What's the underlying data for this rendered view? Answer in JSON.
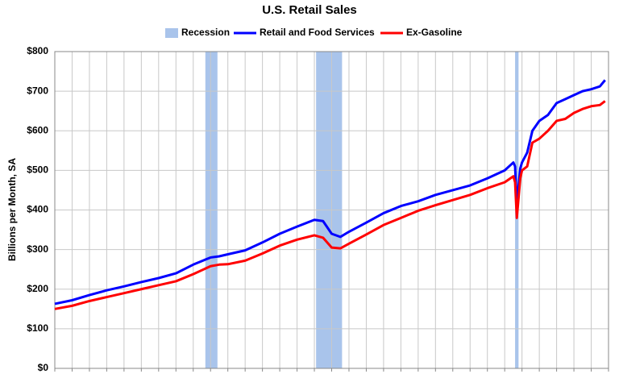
{
  "chart_data": {
    "type": "line",
    "title": "U.S. Retail Sales",
    "y_label": "Billions per Month, SA",
    "x": [
      0,
      1,
      2,
      3,
      4,
      5,
      6,
      7,
      8,
      9,
      9.5,
      10,
      11,
      12,
      13,
      14,
      15,
      15.5,
      16,
      16.5,
      17,
      18,
      19,
      20,
      21,
      22,
      23,
      24,
      25,
      26,
      26.5,
      26.6,
      26.7,
      26.9,
      27,
      27.3,
      27.6,
      28,
      28.5,
      29,
      29.5,
      30,
      30.5,
      31,
      31.5,
      31.8
    ],
    "xlim": [
      0,
      32
    ],
    "xticks": [
      0,
      1,
      2,
      3,
      4,
      5,
      6,
      7,
      8,
      9,
      10,
      11,
      12,
      13,
      14,
      15,
      16,
      17,
      18,
      19,
      20,
      21,
      22,
      23,
      24,
      25,
      26,
      27,
      28,
      29,
      30,
      31,
      32
    ],
    "ylim": [
      0,
      800
    ],
    "yticks": [
      {
        "value": 0,
        "label": "$0"
      },
      {
        "value": 100,
        "label": "$100"
      },
      {
        "value": 200,
        "label": "$200"
      },
      {
        "value": 300,
        "label": "$300"
      },
      {
        "value": 400,
        "label": "$400"
      },
      {
        "value": 500,
        "label": "$500"
      },
      {
        "value": 600,
        "label": "$600"
      },
      {
        "value": 700,
        "label": "$700"
      },
      {
        "value": 800,
        "label": "$800"
      }
    ],
    "grid": true,
    "recession": {
      "name": "Recession",
      "color": "#a9c4eb",
      "ranges": [
        [
          8.7,
          9.4
        ],
        [
          15.1,
          16.6
        ],
        [
          26.6,
          26.8
        ]
      ]
    },
    "series": [
      {
        "name": "Retail and Food Services",
        "color": "#0000ff",
        "values": [
          163,
          172,
          185,
          197,
          207,
          218,
          228,
          240,
          262,
          280,
          283,
          288,
          298,
          318,
          340,
          358,
          375,
          372,
          340,
          332,
          345,
          368,
          392,
          410,
          422,
          438,
          450,
          462,
          480,
          500,
          520,
          510,
          415,
          505,
          520,
          545,
          600,
          625,
          640,
          670,
          680,
          690,
          700,
          705,
          712,
          728
        ]
      },
      {
        "name": "Ex-Gasoline",
        "color": "#ff0000",
        "values": [
          150,
          158,
          170,
          180,
          190,
          200,
          210,
          220,
          238,
          258,
          262,
          263,
          272,
          290,
          310,
          325,
          336,
          330,
          305,
          303,
          315,
          338,
          362,
          380,
          398,
          412,
          425,
          438,
          455,
          470,
          485,
          470,
          380,
          480,
          500,
          510,
          570,
          580,
          600,
          625,
          630,
          645,
          655,
          662,
          665,
          675
        ]
      }
    ]
  }
}
